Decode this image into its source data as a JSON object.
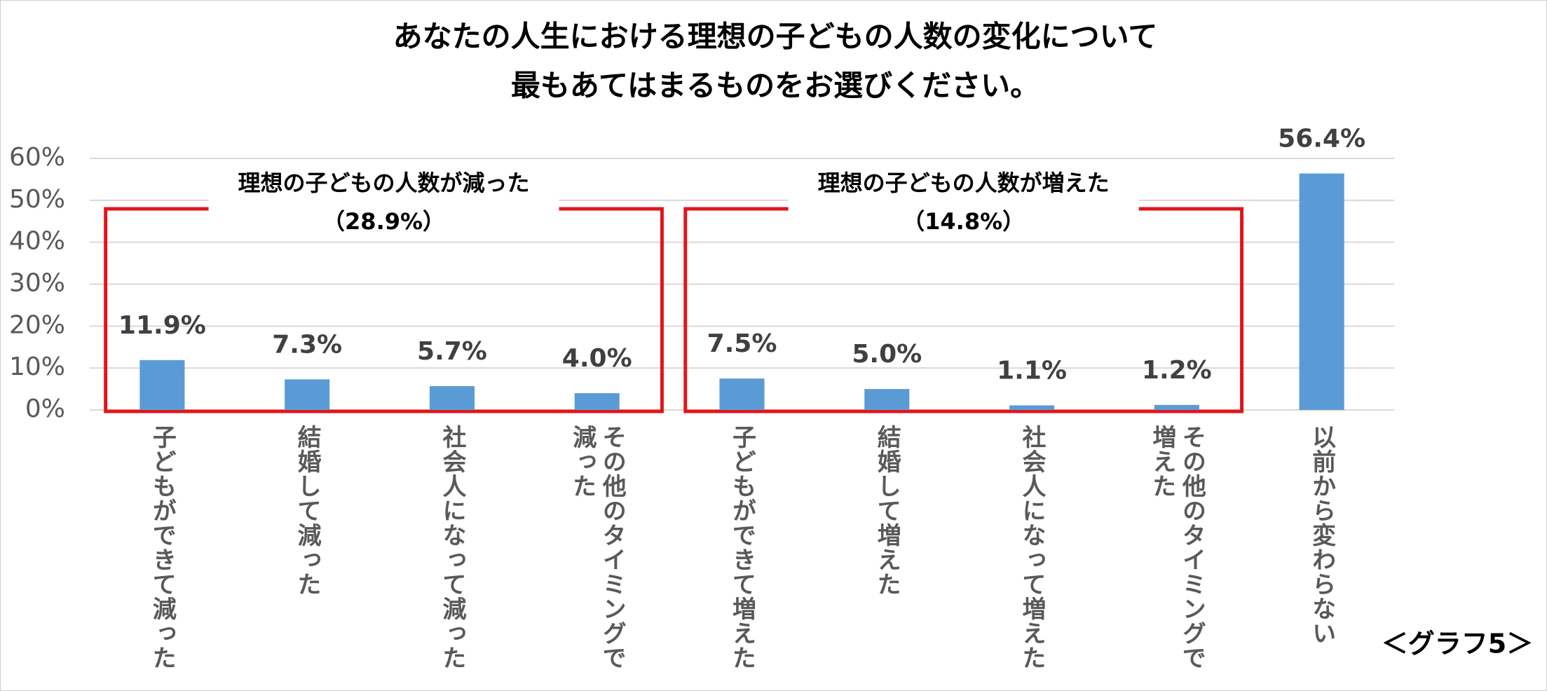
{
  "chart_data": {
    "type": "bar",
    "title": [
      "あなたの人生における理想の子どもの人数の変化について",
      "最もあてはまるものをお選びください。"
    ],
    "categories": [
      "子どもができて減った",
      "結婚して減った",
      "社会人になって減った",
      "その他のタイミングで減った",
      "子どもができて増えた",
      "結婚して増えた",
      "社会人になって増えた",
      "その他のタイミングで増えた",
      "以前から変わらない"
    ],
    "values": [
      11.9,
      7.3,
      5.7,
      4.0,
      7.5,
      5.0,
      1.1,
      1.2,
      56.4
    ],
    "value_labels": [
      "11.9%",
      "7.3%",
      "5.7%",
      "4.0%",
      "7.5%",
      "5.0%",
      "1.1%",
      "1.2%",
      "56.4%"
    ],
    "color": "#5b9bd5",
    "ylim": [
      0,
      60
    ],
    "yticks": [
      {
        "value": 0,
        "label": "0%"
      },
      {
        "value": 10,
        "label": "10%"
      },
      {
        "value": 20,
        "label": "20%"
      },
      {
        "value": 30,
        "label": "30%"
      },
      {
        "value": 40,
        "label": "40%"
      },
      {
        "value": 50,
        "label": "50%"
      },
      {
        "value": 60,
        "label": "60%"
      }
    ],
    "grid": true,
    "annotations": [
      {
        "label": "理想の子どもの人数が減った",
        "total": "（28.9%）"
      },
      {
        "label": "理想の子どもの人数が増えた",
        "total": "（14.8%）"
      }
    ],
    "footnote": "＜グラフ5＞"
  }
}
